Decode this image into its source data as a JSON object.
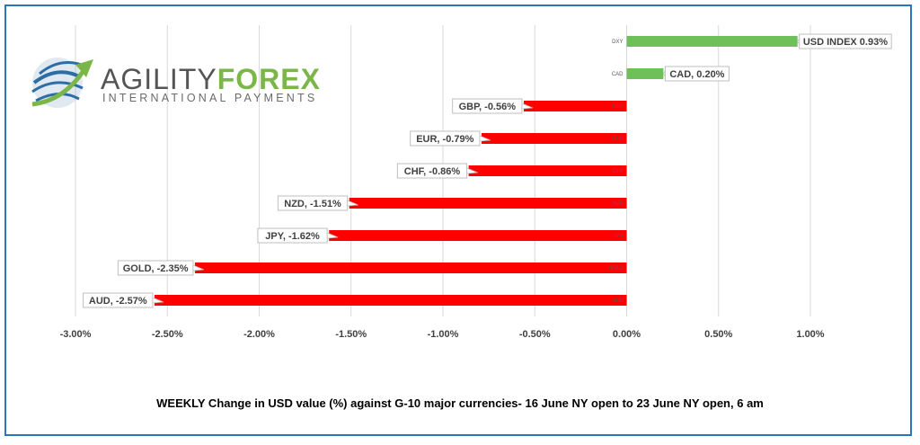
{
  "brand": {
    "name_part1": "AGILITY",
    "name_part2": "FOREX",
    "tagline": "INTERNATIONAL PAYMENTS",
    "colors": {
      "grey": "#555555",
      "green": "#7ab648",
      "blue": "#2e6da4"
    }
  },
  "caption": "WEEKLY Change in  USD value (%)  against  G-10 major currencies- 16 June NY open to 23 June NY open, 6 am",
  "chart_data": {
    "type": "bar",
    "orientation": "horizontal",
    "categories": [
      "DXY",
      "CAD",
      "GBP",
      "EUR",
      "CHF",
      "NZD",
      "JPY",
      "GOLD",
      "AUD"
    ],
    "values": [
      0.93,
      0.2,
      -0.56,
      -0.79,
      -0.86,
      -1.51,
      -1.62,
      -2.35,
      -2.57
    ],
    "data_labels": [
      "USD INDEX 0.93%",
      "CAD, 0.20%",
      "GBP, -0.56%",
      "EUR, -0.79%",
      "CHF, -0.86%",
      "NZD, -1.51%",
      "JPY, -1.62%",
      "GOLD, -2.35%",
      "AUD, -2.57%"
    ],
    "x_ticks": [
      "-3.00%",
      "-2.50%",
      "-2.00%",
      "-1.50%",
      "-1.00%",
      "-0.50%",
      "0.00%",
      "0.50%",
      "1.00%"
    ],
    "xlim": [
      -3.0,
      1.0
    ],
    "grid": true,
    "colors": {
      "positive": "#70c05a",
      "negative": "#ff0000",
      "grid": "#d9d9d9"
    }
  }
}
